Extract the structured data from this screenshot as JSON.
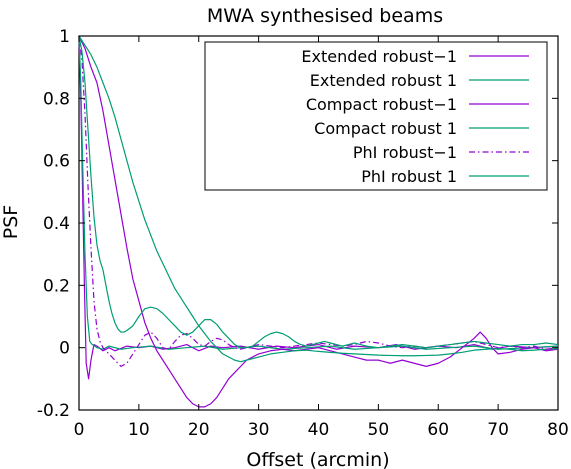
{
  "chart_data": {
    "type": "line",
    "title": "MWA synthesised beams",
    "xlabel": "Offset (arcmin)",
    "ylabel": "PSF",
    "xlim": [
      0,
      80
    ],
    "ylim": [
      -0.2,
      1
    ],
    "xticks": [
      0,
      10,
      20,
      30,
      40,
      50,
      60,
      70,
      80
    ],
    "xtick_labels": [
      "0",
      "10",
      "20",
      "30",
      "40",
      "50",
      "60",
      "70",
      "80"
    ],
    "yticks": [
      -0.2,
      0,
      0.2,
      0.4,
      0.6,
      0.8,
      1
    ],
    "ytick_labels": [
      "-0.2",
      "0",
      "0.2",
      "0.4",
      "0.6",
      "0.8",
      "1"
    ],
    "grid": false,
    "legend_position": "top-right",
    "series": [
      {
        "name": "Extended robust−1",
        "color": "#9400d3",
        "dash": "solid",
        "points": [
          [
            0,
            1
          ],
          [
            0.3,
            0.8
          ],
          [
            0.6,
            0.5
          ],
          [
            0.9,
            0.2
          ],
          [
            1.2,
            -0.05
          ],
          [
            1.6,
            -0.1
          ],
          [
            2,
            -0.04
          ],
          [
            2.5,
            0.01
          ],
          [
            3,
            0.005
          ],
          [
            4,
            -0.01
          ],
          [
            5,
            0
          ],
          [
            6,
            -0.01
          ],
          [
            8,
            0.005
          ],
          [
            10,
            0
          ],
          [
            12,
            0.005
          ],
          [
            14,
            -0.005
          ],
          [
            16,
            0
          ],
          [
            18,
            0.01
          ],
          [
            20,
            -0.01
          ],
          [
            22,
            0.005
          ],
          [
            24,
            0
          ],
          [
            27,
            0.005
          ],
          [
            30,
            -0.005
          ],
          [
            33,
            0.005
          ],
          [
            36,
            0
          ],
          [
            40,
            0.01
          ],
          [
            43,
            -0.005
          ],
          [
            46,
            0.005
          ],
          [
            50,
            0
          ],
          [
            53,
            0.01
          ],
          [
            56,
            -0.005
          ],
          [
            60,
            0.005
          ],
          [
            63,
            0
          ],
          [
            66,
            0.01
          ],
          [
            69,
            -0.005
          ],
          [
            72,
            0.005
          ],
          [
            76,
            0
          ],
          [
            80,
            0.005
          ]
        ]
      },
      {
        "name": "Extended robust 1",
        "color": "#009e73",
        "dash": "solid",
        "points": [
          [
            0,
            1
          ],
          [
            0.3,
            0.85
          ],
          [
            0.6,
            0.6
          ],
          [
            1,
            0.3
          ],
          [
            1.4,
            0.1
          ],
          [
            1.8,
            0.02
          ],
          [
            2.2,
            0.01
          ],
          [
            3,
            0
          ],
          [
            4,
            -0.005
          ],
          [
            5,
            0.005
          ],
          [
            7,
            -0.005
          ],
          [
            9,
            0
          ],
          [
            12,
            0.005
          ],
          [
            15,
            -0.005
          ],
          [
            18,
            0
          ],
          [
            21,
            0.005
          ],
          [
            24,
            -0.005
          ],
          [
            27,
            0
          ],
          [
            30,
            0.005
          ],
          [
            34,
            -0.005
          ],
          [
            38,
            0
          ],
          [
            42,
            0.005
          ],
          [
            46,
            -0.005
          ],
          [
            50,
            0
          ],
          [
            54,
            0.005
          ],
          [
            58,
            -0.005
          ],
          [
            62,
            0
          ],
          [
            66,
            0.005
          ],
          [
            70,
            -0.005
          ],
          [
            75,
            0
          ],
          [
            80,
            0.005
          ]
        ]
      },
      {
        "name": "Compact robust−1",
        "color": "#9400d3",
        "dash": "solid",
        "points": [
          [
            0,
            1
          ],
          [
            1,
            0.96
          ],
          [
            2,
            0.9
          ],
          [
            3,
            0.85
          ],
          [
            4,
            0.76
          ],
          [
            5,
            0.65
          ],
          [
            6,
            0.54
          ],
          [
            7,
            0.43
          ],
          [
            8,
            0.32
          ],
          [
            9,
            0.22
          ],
          [
            10,
            0.15
          ],
          [
            11,
            0.08
          ],
          [
            12,
            0.03
          ],
          [
            13,
            -0.01
          ],
          [
            14,
            -0.04
          ],
          [
            15,
            -0.07
          ],
          [
            16,
            -0.1
          ],
          [
            17,
            -0.13
          ],
          [
            18,
            -0.16
          ],
          [
            19,
            -0.18
          ],
          [
            20,
            -0.19
          ],
          [
            21,
            -0.19
          ],
          [
            22,
            -0.18
          ],
          [
            23,
            -0.16
          ],
          [
            24,
            -0.13
          ],
          [
            25,
            -0.1
          ],
          [
            26,
            -0.08
          ],
          [
            27,
            -0.06
          ],
          [
            28,
            -0.04
          ],
          [
            30,
            -0.02
          ],
          [
            32,
            -0.01
          ],
          [
            34,
            -0.005
          ],
          [
            36,
            -0.01
          ],
          [
            38,
            -0.005
          ],
          [
            40,
            0
          ],
          [
            42,
            -0.01
          ],
          [
            44,
            -0.02
          ],
          [
            46,
            -0.03
          ],
          [
            48,
            -0.04
          ],
          [
            50,
            -0.04
          ],
          [
            52,
            -0.05
          ],
          [
            54,
            -0.04
          ],
          [
            56,
            -0.05
          ],
          [
            58,
            -0.06
          ],
          [
            60,
            -0.05
          ],
          [
            62,
            -0.03
          ],
          [
            64,
            0
          ],
          [
            66,
            0.03
          ],
          [
            67,
            0.05
          ],
          [
            68,
            0.03
          ],
          [
            69,
            0
          ],
          [
            70,
            -0.02
          ],
          [
            72,
            -0.015
          ],
          [
            74,
            -0.005
          ],
          [
            76,
            0
          ],
          [
            78,
            -0.01
          ],
          [
            80,
            -0.005
          ]
        ]
      },
      {
        "name": "Compact robust 1",
        "color": "#009e73",
        "dash": "solid",
        "points": [
          [
            0,
            1
          ],
          [
            1,
            0.97
          ],
          [
            2,
            0.94
          ],
          [
            3,
            0.9
          ],
          [
            4,
            0.85
          ],
          [
            5,
            0.8
          ],
          [
            6,
            0.74
          ],
          [
            7,
            0.67
          ],
          [
            8,
            0.6
          ],
          [
            9,
            0.53
          ],
          [
            10,
            0.47
          ],
          [
            11,
            0.41
          ],
          [
            12,
            0.36
          ],
          [
            13,
            0.31
          ],
          [
            14,
            0.27
          ],
          [
            15,
            0.23
          ],
          [
            16,
            0.19
          ],
          [
            17,
            0.16
          ],
          [
            18,
            0.13
          ],
          [
            19,
            0.1
          ],
          [
            20,
            0.07
          ],
          [
            21,
            0.045
          ],
          [
            22,
            0.02
          ],
          [
            23,
            0
          ],
          [
            24,
            -0.02
          ],
          [
            25,
            -0.03
          ],
          [
            26,
            -0.04
          ],
          [
            27,
            -0.045
          ],
          [
            28,
            -0.04
          ],
          [
            30,
            -0.03
          ],
          [
            32,
            -0.02
          ],
          [
            34,
            -0.015
          ],
          [
            36,
            -0.01
          ],
          [
            38,
            -0.008
          ],
          [
            40,
            -0.012
          ],
          [
            42,
            -0.015
          ],
          [
            44,
            -0.018
          ],
          [
            46,
            -0.02
          ],
          [
            48,
            -0.022
          ],
          [
            50,
            -0.024
          ],
          [
            52,
            -0.025
          ],
          [
            54,
            -0.026
          ],
          [
            56,
            -0.026
          ],
          [
            58,
            -0.025
          ],
          [
            60,
            -0.024
          ],
          [
            62,
            -0.02
          ],
          [
            64,
            -0.015
          ],
          [
            66,
            -0.008
          ],
          [
            68,
            -0.005
          ],
          [
            70,
            -0.003
          ],
          [
            72,
            -0.005
          ],
          [
            74,
            -0.01
          ],
          [
            76,
            -0.008
          ],
          [
            78,
            -0.005
          ],
          [
            80,
            -0.003
          ]
        ]
      },
      {
        "name": "PhI robust−1",
        "color": "#9400d3",
        "dash": "dashdot",
        "points": [
          [
            0,
            1
          ],
          [
            0.5,
            0.92
          ],
          [
            1,
            0.75
          ],
          [
            1.5,
            0.52
          ],
          [
            2,
            0.32
          ],
          [
            2.5,
            0.15
          ],
          [
            3,
            0.06
          ],
          [
            3.5,
            0.02
          ],
          [
            4,
            0
          ],
          [
            5,
            -0.02
          ],
          [
            6,
            -0.04
          ],
          [
            7,
            -0.06
          ],
          [
            8,
            -0.05
          ],
          [
            9,
            -0.02
          ],
          [
            10,
            0.01
          ],
          [
            11,
            0.04
          ],
          [
            12,
            0.05
          ],
          [
            13,
            0.03
          ],
          [
            14,
            0
          ],
          [
            15,
            -0.005
          ],
          [
            16,
            0.02
          ],
          [
            17,
            0.04
          ],
          [
            18,
            0.045
          ],
          [
            19,
            0.03
          ],
          [
            20,
            0.01
          ],
          [
            21,
            0.005
          ],
          [
            22,
            0.02
          ],
          [
            23,
            0.03
          ],
          [
            24,
            0.025
          ],
          [
            25,
            0.01
          ],
          [
            26,
            0
          ],
          [
            27,
            -0.005
          ],
          [
            28,
            0
          ],
          [
            30,
            0.01
          ],
          [
            32,
            0.005
          ],
          [
            34,
            0
          ],
          [
            36,
            0.005
          ],
          [
            38,
            0.01
          ],
          [
            40,
            0.015
          ],
          [
            42,
            0.01
          ],
          [
            44,
            0.005
          ],
          [
            46,
            0.01
          ],
          [
            48,
            0.02
          ],
          [
            50,
            0.015
          ],
          [
            52,
            0.005
          ],
          [
            54,
            0
          ],
          [
            56,
            0.005
          ],
          [
            58,
            0
          ],
          [
            60,
            0.005
          ],
          [
            62,
            0.01
          ],
          [
            64,
            0.015
          ],
          [
            66,
            0.02
          ],
          [
            68,
            0.01
          ],
          [
            70,
            0
          ],
          [
            72,
            0.005
          ],
          [
            74,
            0
          ],
          [
            76,
            0.005
          ],
          [
            78,
            -0.005
          ],
          [
            80,
            0
          ]
        ]
      },
      {
        "name": "PhI robust 1",
        "color": "#009e73",
        "dash": "solid",
        "points": [
          [
            0,
            1
          ],
          [
            0.5,
            0.95
          ],
          [
            1,
            0.85
          ],
          [
            1.5,
            0.7
          ],
          [
            2,
            0.55
          ],
          [
            2.5,
            0.42
          ],
          [
            3,
            0.33
          ],
          [
            3.5,
            0.28
          ],
          [
            4,
            0.25
          ],
          [
            4.5,
            0.2
          ],
          [
            5,
            0.15
          ],
          [
            5.5,
            0.11
          ],
          [
            6,
            0.08
          ],
          [
            6.5,
            0.06
          ],
          [
            7,
            0.05
          ],
          [
            7.5,
            0.05
          ],
          [
            8,
            0.055
          ],
          [
            9,
            0.07
          ],
          [
            10,
            0.1
          ],
          [
            11,
            0.125
          ],
          [
            12,
            0.13
          ],
          [
            13,
            0.125
          ],
          [
            14,
            0.11
          ],
          [
            15,
            0.09
          ],
          [
            16,
            0.07
          ],
          [
            17,
            0.05
          ],
          [
            18,
            0.04
          ],
          [
            19,
            0.05
          ],
          [
            20,
            0.07
          ],
          [
            21,
            0.09
          ],
          [
            22,
            0.09
          ],
          [
            23,
            0.075
          ],
          [
            24,
            0.05
          ],
          [
            25,
            0.03
          ],
          [
            26,
            0.01
          ],
          [
            27,
            0
          ],
          [
            28,
            0
          ],
          [
            29,
            0.005
          ],
          [
            30,
            0.02
          ],
          [
            31,
            0.035
          ],
          [
            32,
            0.045
          ],
          [
            33,
            0.05
          ],
          [
            34,
            0.045
          ],
          [
            35,
            0.035
          ],
          [
            36,
            0.02
          ],
          [
            37,
            0.01
          ],
          [
            38,
            0.005
          ],
          [
            39,
            0.01
          ],
          [
            40,
            0.015
          ],
          [
            41,
            0.02
          ],
          [
            42,
            0.015
          ],
          [
            43,
            0.01
          ],
          [
            44,
            0.005
          ],
          [
            45,
            0.01
          ],
          [
            46,
            0.015
          ],
          [
            47,
            0.01
          ],
          [
            48,
            0.005
          ],
          [
            50,
            0
          ],
          [
            52,
            0.005
          ],
          [
            54,
            0.01
          ],
          [
            56,
            0.005
          ],
          [
            58,
            0
          ],
          [
            60,
            0.005
          ],
          [
            62,
            0.01
          ],
          [
            64,
            0.015
          ],
          [
            66,
            0.02
          ],
          [
            68,
            0.015
          ],
          [
            70,
            0.01
          ],
          [
            72,
            0.005
          ],
          [
            74,
            0.01
          ],
          [
            76,
            0.01
          ],
          [
            78,
            0.015
          ],
          [
            80,
            0.01
          ]
        ]
      }
    ]
  }
}
